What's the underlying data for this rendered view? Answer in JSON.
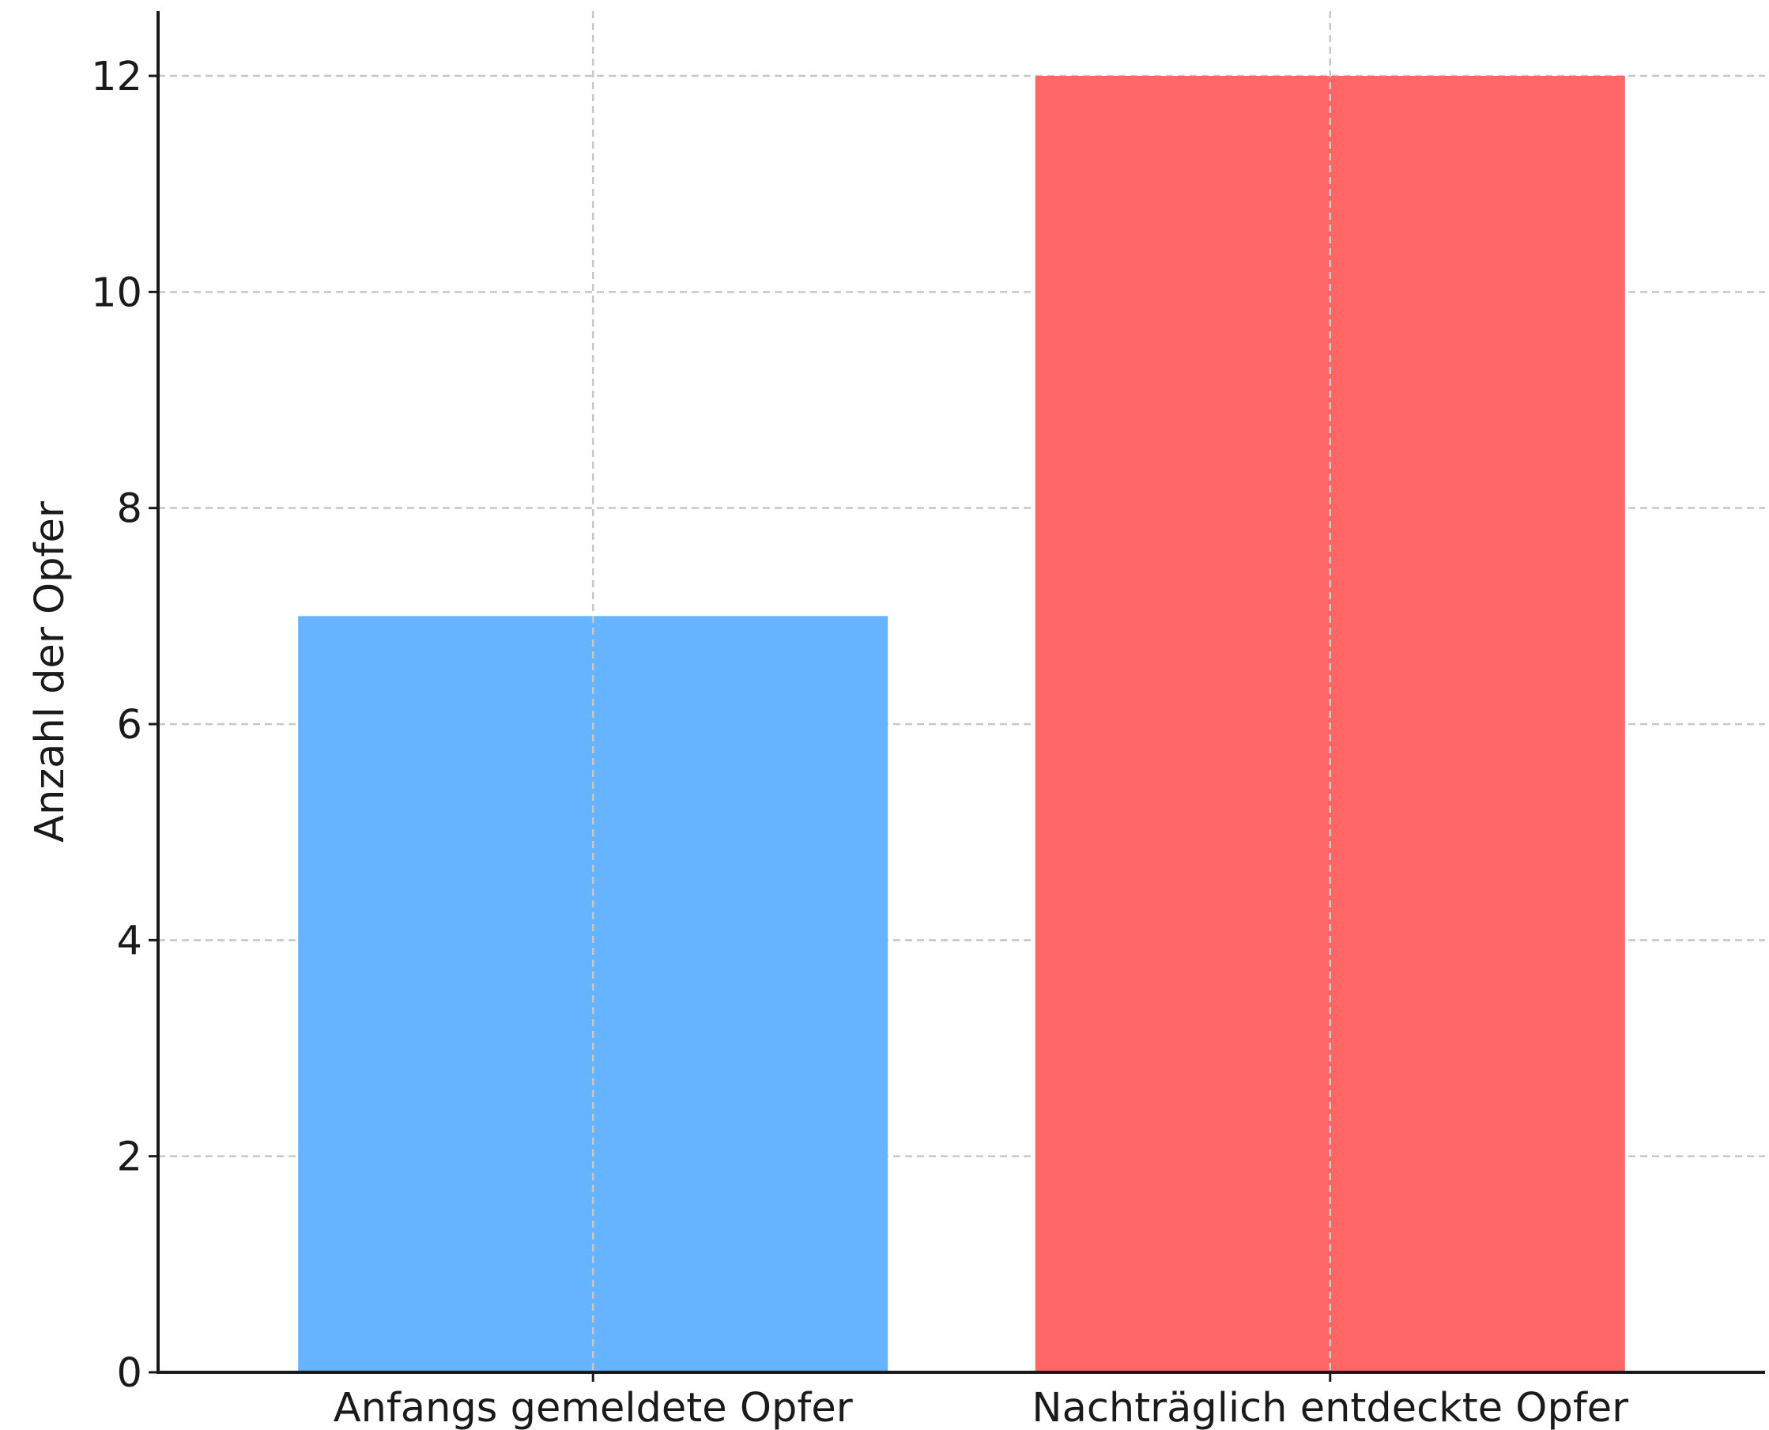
{
  "chart_data": {
    "type": "bar",
    "categories": [
      "Anfangs gemeldete Opfer",
      "Nachträglich entdeckte Opfer"
    ],
    "values": [
      7,
      12
    ],
    "colors": [
      "#66b3ff",
      "#ff6666"
    ],
    "ylabel": "Anzahl der Opfer",
    "xlabel": "",
    "ylim": [
      0,
      12.6
    ],
    "yticks": [
      0,
      2,
      4,
      6,
      8,
      10,
      12
    ],
    "grid": true,
    "grid_style": "dashed"
  }
}
